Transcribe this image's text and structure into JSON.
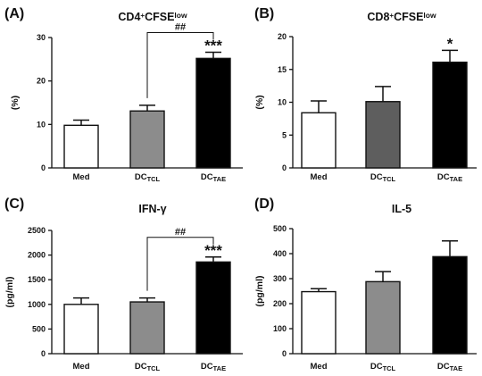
{
  "chart_data": [
    {
      "type": "bar",
      "panel_label": "(A)",
      "title": {
        "main": "CD4",
        "sup1": "+",
        "mid": "CFSE",
        "sup2": "low"
      },
      "ylabel": "(%)",
      "ylim": [
        0,
        30
      ],
      "yticks": [
        0,
        10,
        20,
        30
      ],
      "categories": [
        {
          "main": "Med",
          "sub": ""
        },
        {
          "main": "DC",
          "sub": "TCL"
        },
        {
          "main": "DC",
          "sub": "TAE"
        }
      ],
      "values": [
        9.8,
        13.1,
        25.2
      ],
      "errors": [
        1.2,
        1.3,
        1.4
      ],
      "fill_colors": [
        "#ffffff",
        "#8c8c8c",
        "#000000"
      ],
      "significance": [
        "",
        "",
        "***"
      ],
      "bracket": {
        "from": 1,
        "to": 2,
        "label": "##"
      }
    },
    {
      "type": "bar",
      "panel_label": "(B)",
      "title": {
        "main": "CD8",
        "sup1": "+",
        "mid": "CFSE",
        "sup2": "low"
      },
      "ylabel": "(%)",
      "ylim": [
        0,
        20
      ],
      "yticks": [
        0,
        5,
        10,
        15,
        20
      ],
      "categories": [
        {
          "main": "Med",
          "sub": ""
        },
        {
          "main": "DC",
          "sub": "TCL"
        },
        {
          "main": "DC",
          "sub": "TAE"
        }
      ],
      "values": [
        8.4,
        10.1,
        16.1
      ],
      "errors": [
        1.8,
        2.3,
        1.8
      ],
      "fill_colors": [
        "#ffffff",
        "#5e5e5e",
        "#000000"
      ],
      "significance": [
        "",
        "",
        "*"
      ],
      "bracket": null
    },
    {
      "type": "bar",
      "panel_label": "(C)",
      "title": {
        "main": "IFN-γ",
        "sup1": "",
        "mid": "",
        "sup2": ""
      },
      "ylabel": "(pg/ml)",
      "ylim": [
        0,
        2500
      ],
      "yticks": [
        0,
        500,
        1000,
        1500,
        2000,
        2500
      ],
      "categories": [
        {
          "main": "Med",
          "sub": ""
        },
        {
          "main": "DC",
          "sub": "TCL"
        },
        {
          "main": "DC",
          "sub": "TAE"
        }
      ],
      "values": [
        1000,
        1050,
        1860
      ],
      "errors": [
        130,
        80,
        100
      ],
      "fill_colors": [
        "#ffffff",
        "#8c8c8c",
        "#000000"
      ],
      "significance": [
        "",
        "",
        "***"
      ],
      "bracket": {
        "from": 1,
        "to": 2,
        "label": "##"
      }
    },
    {
      "type": "bar",
      "panel_label": "(D)",
      "title": {
        "main": "IL-5",
        "sup1": "",
        "mid": "",
        "sup2": ""
      },
      "ylabel": "(pg/ml)",
      "ylim": [
        0,
        500
      ],
      "yticks": [
        0,
        100,
        200,
        300,
        400,
        500
      ],
      "categories": [
        {
          "main": "Med",
          "sub": ""
        },
        {
          "main": "DC",
          "sub": "TCL"
        },
        {
          "main": "DC",
          "sub": "TAE"
        }
      ],
      "values": [
        248,
        288,
        388
      ],
      "errors": [
        12,
        40,
        63
      ],
      "fill_colors": [
        "#ffffff",
        "#8c8c8c",
        "#000000"
      ],
      "significance": [
        "",
        "",
        ""
      ],
      "bracket": null
    }
  ]
}
